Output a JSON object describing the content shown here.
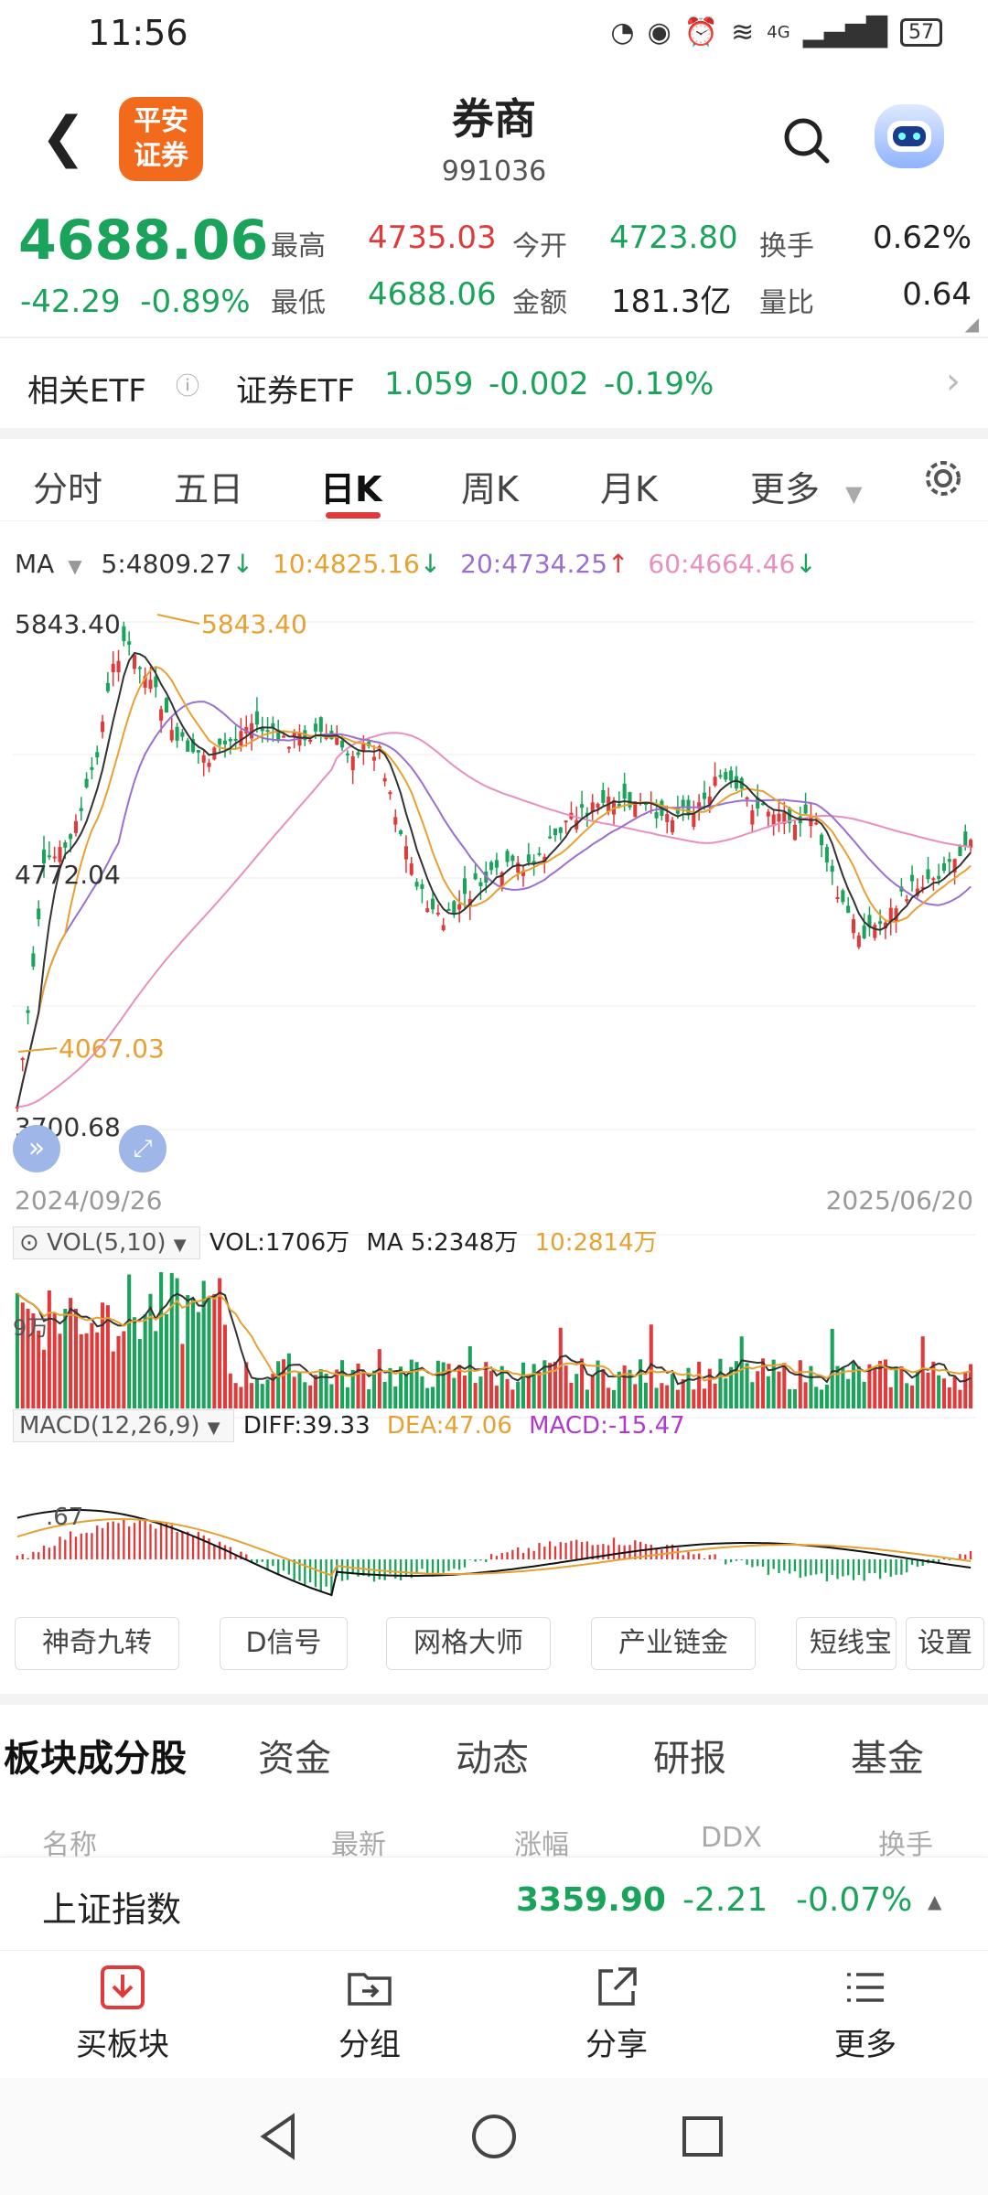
{
  "status_bar": {
    "time": "11:56",
    "network": "4G",
    "battery": "57"
  },
  "header": {
    "title": "券商",
    "code": "991036",
    "logo_text": "平安证券"
  },
  "quote": {
    "price": "4688.06",
    "change": "-42.29",
    "change_pct": "-0.89%",
    "high_label": "最高",
    "high": "4735.03",
    "low_label": "最低",
    "low": "4688.06",
    "open_label": "今开",
    "open": "4723.80",
    "amount_label": "金额",
    "amount": "181.3亿",
    "turnover_label": "换手",
    "turnover": "0.62%",
    "volume_ratio_label": "量比",
    "volume_ratio": "0.64"
  },
  "etf": {
    "label": "相关ETF",
    "name": "证券ETF",
    "price": "1.059",
    "change": "-0.002",
    "change_pct": "-0.19%"
  },
  "chart_tabs": [
    "分时",
    "五日",
    "日K",
    "周K",
    "月K",
    "更多"
  ],
  "ma": {
    "label": "MA",
    "ma5": "5:4809.27",
    "ma10": "10:4825.16",
    "ma20": "20:4734.25",
    "ma60": "60:4664.46"
  },
  "kline": {
    "y_top": "5843.40",
    "y_mid": "4772.04",
    "y_bottom": "3700.68",
    "high_mark": "5843.40",
    "low_mark": "4067.03",
    "date_start": "2024/09/26",
    "date_end": "2025/06/20"
  },
  "vol": {
    "label": "VOL(5,10)",
    "vol": "VOL:1706万",
    "ma5": "MA 5:2348万",
    "ma10": "10:2814万",
    "axis": "9万"
  },
  "macd": {
    "label": "MACD(12,26,9)",
    "diff": "DIFF:39.33",
    "dea": "DEA:47.06",
    "macd": "MACD:-15.47",
    "axis": ".67"
  },
  "function_buttons": [
    "神奇九转",
    "D信号",
    "网格大师",
    "产业链金",
    "短线宝",
    "设置"
  ],
  "section_tabs": [
    "板块成分股",
    "资金",
    "动态",
    "研报",
    "基金"
  ],
  "column_headers": [
    "名称",
    "最新",
    "涨幅",
    "DDX",
    "换手"
  ],
  "index_bar": {
    "name": "上证指数",
    "price": "3359.90",
    "change": "-2.21",
    "change_pct": "-0.07%"
  },
  "bottom_nav": [
    "买板块",
    "分组",
    "分享",
    "更多"
  ],
  "colors": {
    "up": "#e03a3a",
    "down": "#1aa35a",
    "ma5": "#333333",
    "ma10": "#e8a030",
    "ma20": "#9b6fd1",
    "ma60": "#e88fbf"
  }
}
